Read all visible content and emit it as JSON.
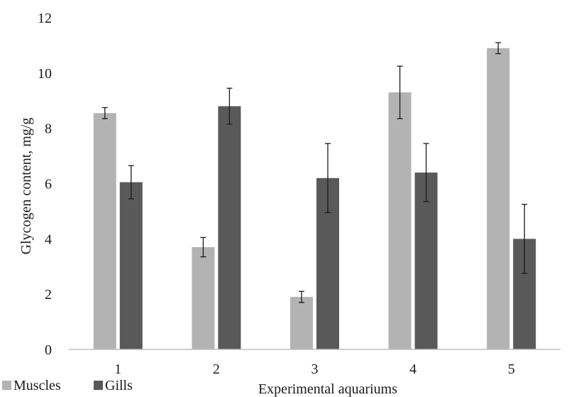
{
  "chart_data": {
    "type": "bar",
    "categories": [
      "1",
      "2",
      "3",
      "4",
      "5"
    ],
    "series": [
      {
        "name": "Muscles",
        "values": [
          8.55,
          3.7,
          1.9,
          9.3,
          10.9
        ],
        "errors": [
          0.2,
          0.35,
          0.2,
          0.95,
          0.2
        ],
        "color": "#b3b3b3"
      },
      {
        "name": "Gills",
        "values": [
          6.05,
          8.8,
          6.2,
          6.4,
          4.0
        ],
        "errors": [
          0.6,
          0.65,
          1.25,
          1.05,
          1.25
        ],
        "color": "#595959"
      }
    ],
    "xlabel": "Experimental aquariums",
    "ylabel": "Glycogen content, mg/g",
    "ylim": [
      0,
      12
    ],
    "yticks": [
      "0",
      "2",
      "4",
      "6",
      "8",
      "10",
      "12"
    ],
    "grid": false,
    "legend_position": "bottom-left"
  }
}
